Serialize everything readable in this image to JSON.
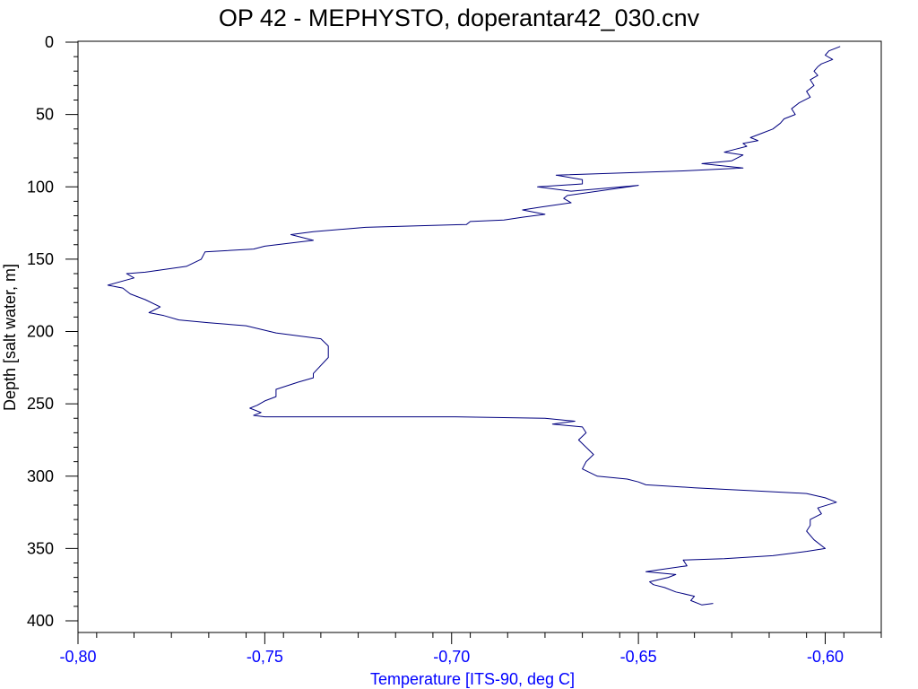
{
  "chart_data": {
    "type": "line",
    "title": "OP 42 - MEPHYSTO, doperantar42_030.cnv",
    "xlabel": "Temperature [ITS-90, deg C]",
    "ylabel": "Depth [salt water, m]",
    "xlim": [
      -0.8,
      -0.585
    ],
    "ylim": [
      400,
      0
    ],
    "y_inverted": true,
    "x_ticks": [
      -0.8,
      -0.75,
      -0.7,
      -0.65,
      -0.6
    ],
    "x_tick_labels": [
      "-0,80",
      "-0,75",
      "-0,70",
      "-0,65",
      "-0,60"
    ],
    "y_ticks": [
      0,
      50,
      100,
      150,
      200,
      250,
      300,
      350,
      400
    ],
    "y_tick_labels": [
      "0",
      "50",
      "100",
      "150",
      "200",
      "250",
      "300",
      "350",
      "400"
    ],
    "grid": false,
    "series": [
      {
        "color": "#00007f",
        "x": [
          -0.596,
          -0.599,
          -0.6,
          -0.598,
          -0.601,
          -0.602,
          -0.603,
          -0.602,
          -0.604,
          -0.603,
          -0.605,
          -0.604,
          -0.607,
          -0.609,
          -0.608,
          -0.611,
          -0.612,
          -0.614,
          -0.617,
          -0.62,
          -0.618,
          -0.622,
          -0.621,
          -0.624,
          -0.627,
          -0.622,
          -0.625,
          -0.633,
          -0.622,
          -0.638,
          -0.672,
          -0.665,
          -0.665,
          -0.677,
          -0.668,
          -0.65,
          -0.669,
          -0.67,
          -0.668,
          -0.676,
          -0.681,
          -0.675,
          -0.681,
          -0.686,
          -0.695,
          -0.696,
          -0.723,
          -0.737,
          -0.743,
          -0.737,
          -0.75,
          -0.753,
          -0.766,
          -0.767,
          -0.771,
          -0.782,
          -0.787,
          -0.785,
          -0.792,
          -0.788,
          -0.786,
          -0.782,
          -0.778,
          -0.781,
          -0.777,
          -0.773,
          -0.765,
          -0.755,
          -0.747,
          -0.735,
          -0.733,
          -0.733,
          -0.737,
          -0.737,
          -0.741,
          -0.747,
          -0.747,
          -0.75,
          -0.752,
          -0.754,
          -0.751,
          -0.753,
          -0.75,
          -0.7,
          -0.675,
          -0.667,
          -0.673,
          -0.665,
          -0.664,
          -0.666,
          -0.662,
          -0.664,
          -0.665,
          -0.661,
          -0.653,
          -0.65,
          -0.648,
          -0.635,
          -0.62,
          -0.605,
          -0.6,
          -0.597,
          -0.602,
          -0.601,
          -0.604,
          -0.604,
          -0.605,
          -0.603,
          -0.6,
          -0.605,
          -0.608,
          -0.614,
          -0.627,
          -0.638,
          -0.637,
          -0.648,
          -0.64,
          -0.642,
          -0.647,
          -0.646,
          -0.643,
          -0.64,
          -0.635,
          -0.636,
          -0.633,
          -0.63
        ],
        "y": [
          3,
          6,
          9,
          12,
          15,
          17,
          20,
          23,
          26,
          30,
          34,
          38,
          42,
          46,
          50,
          53,
          56,
          60,
          63,
          66,
          68,
          70,
          72,
          74,
          76,
          78,
          82,
          84,
          87,
          89,
          92,
          95,
          98,
          100,
          103,
          99,
          106,
          108,
          111,
          114,
          116,
          119,
          121,
          123,
          124,
          126,
          128,
          131,
          133,
          137,
          141,
          143,
          145,
          150,
          155,
          159,
          160,
          163,
          168,
          170,
          174,
          178,
          183,
          187,
          189,
          192,
          194,
          196,
          201,
          205,
          210,
          218,
          229,
          232,
          235,
          240,
          245,
          248,
          251,
          253,
          256,
          258,
          259,
          259,
          260,
          262,
          264,
          266,
          270,
          275,
          285,
          290,
          295,
          300,
          302,
          304,
          306,
          308,
          310,
          312,
          315,
          318,
          322,
          326,
          330,
          334,
          338,
          344,
          350,
          352,
          353,
          355,
          357,
          358,
          362,
          366,
          368,
          370,
          373,
          375,
          377,
          380,
          383,
          386,
          389,
          388
        ]
      }
    ]
  }
}
